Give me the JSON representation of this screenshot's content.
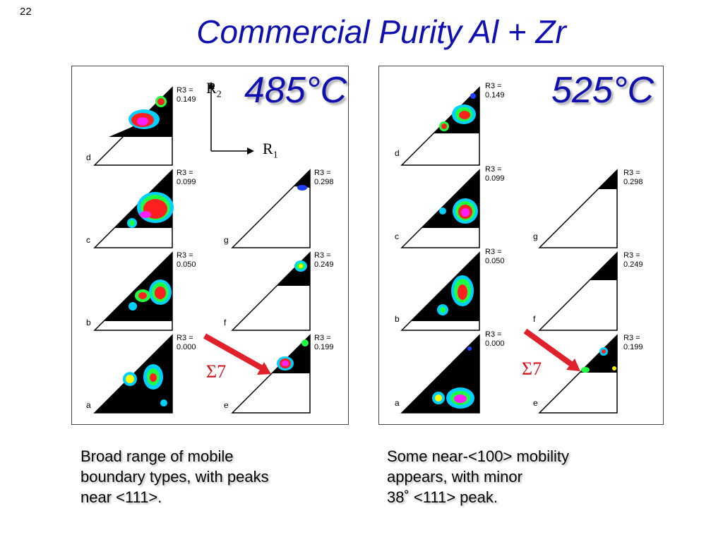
{
  "slide_number": "22",
  "title": "Commercial Purity Al + Zr",
  "axes": {
    "r1": "R",
    "r1_sub": "1",
    "r2": "R",
    "r2_sub": "2"
  },
  "left_panel": {
    "temperature": "485°C",
    "sigma_label": "Σ7",
    "triangles": [
      {
        "letter": "d",
        "r3_line1": "R3 =",
        "r3_line2": "0.149"
      },
      {
        "letter": "c",
        "r3_line1": "R3 =",
        "r3_line2": "0.099"
      },
      {
        "letter": "b",
        "r3_line1": "R3 =",
        "r3_line2": "0.050"
      },
      {
        "letter": "a",
        "r3_line1": "R3 =",
        "r3_line2": "0.000"
      },
      {
        "letter": "g",
        "r3_line1": "R3 =",
        "r3_line2": "0.298"
      },
      {
        "letter": "f",
        "r3_line1": "R3 =",
        "r3_line2": "0.249"
      },
      {
        "letter": "e",
        "r3_line1": "R3 =",
        "r3_line2": "0.199"
      }
    ]
  },
  "right_panel": {
    "temperature": "525°C",
    "sigma_label": "Σ7",
    "triangles": [
      {
        "letter": "d",
        "r3_line1": "R3 =",
        "r3_line2": "0.149"
      },
      {
        "letter": "c",
        "r3_line1": "R3 =",
        "r3_line2": "0.099"
      },
      {
        "letter": "b",
        "r3_line1": "R3 =",
        "r3_line2": "0.050"
      },
      {
        "letter": "a",
        "r3_line1": "R3 =",
        "r3_line2": "0.000"
      },
      {
        "letter": "g",
        "r3_line1": "R3 =",
        "r3_line2": "0.298"
      },
      {
        "letter": "f",
        "r3_line1": "R3 =",
        "r3_line2": "0.249"
      },
      {
        "letter": "e",
        "r3_line1": "R3 =",
        "r3_line2": "0.199"
      }
    ]
  },
  "captions": {
    "left": [
      "Broad range of mobile",
      "boundary types, with peaks",
      "near <111>."
    ],
    "right": [
      "Some near-<100> mobility",
      "appears, with minor",
      "38˚ <111> peak."
    ]
  },
  "colors": {
    "title": "#1010b0",
    "arrow": "#e0202a",
    "sigma": "#d0101a"
  }
}
